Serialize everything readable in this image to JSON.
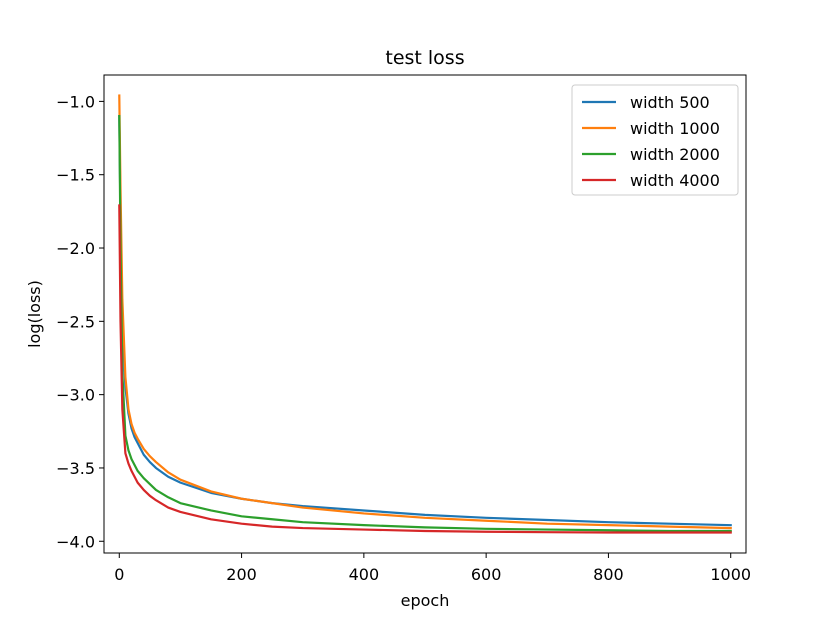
{
  "chart_data": {
    "type": "line",
    "title": "test loss",
    "xlabel": "epoch",
    "ylabel": "log(loss)",
    "xlim": [
      -25,
      1025
    ],
    "ylim": [
      -4.08,
      -0.82
    ],
    "xticks": [
      0,
      200,
      400,
      600,
      800,
      1000
    ],
    "yticks": [
      -1.0,
      -1.5,
      -2.0,
      -2.5,
      -3.0,
      -3.5,
      -4.0
    ],
    "xtick_labels": [
      "0",
      "200",
      "400",
      "600",
      "800",
      "1000"
    ],
    "ytick_labels": [
      "−1.0",
      "−1.5",
      "−2.0",
      "−2.5",
      "−3.0",
      "−3.5",
      "−4.0"
    ],
    "grid": false,
    "legend_position": "top-right",
    "series": [
      {
        "name": "width 500",
        "color": "#1f77b4",
        "x": [
          0,
          2,
          5,
          10,
          15,
          20,
          25,
          30,
          40,
          50,
          60,
          80,
          100,
          150,
          200,
          250,
          300,
          400,
          500,
          600,
          700,
          800,
          900,
          1000
        ],
        "y": [
          -1.1,
          -1.8,
          -2.5,
          -2.95,
          -3.13,
          -3.23,
          -3.29,
          -3.33,
          -3.41,
          -3.46,
          -3.5,
          -3.56,
          -3.6,
          -3.67,
          -3.71,
          -3.74,
          -3.76,
          -3.79,
          -3.82,
          -3.84,
          -3.855,
          -3.87,
          -3.88,
          -3.89
        ]
      },
      {
        "name": "width 1000",
        "color": "#ff7f0e",
        "x": [
          0,
          2,
          5,
          10,
          15,
          20,
          25,
          30,
          40,
          50,
          60,
          80,
          100,
          150,
          200,
          250,
          300,
          400,
          500,
          600,
          700,
          800,
          900,
          1000
        ],
        "y": [
          -0.96,
          -1.6,
          -2.35,
          -2.88,
          -3.1,
          -3.2,
          -3.26,
          -3.3,
          -3.37,
          -3.42,
          -3.46,
          -3.53,
          -3.58,
          -3.66,
          -3.71,
          -3.74,
          -3.77,
          -3.81,
          -3.84,
          -3.86,
          -3.88,
          -3.89,
          -3.9,
          -3.91
        ]
      },
      {
        "name": "width 2000",
        "color": "#2ca02c",
        "x": [
          0,
          2,
          5,
          10,
          15,
          20,
          25,
          30,
          40,
          50,
          60,
          80,
          100,
          150,
          200,
          250,
          300,
          400,
          500,
          600,
          700,
          800,
          900,
          1000
        ],
        "y": [
          -1.1,
          -2.0,
          -2.85,
          -3.28,
          -3.38,
          -3.44,
          -3.48,
          -3.52,
          -3.57,
          -3.61,
          -3.65,
          -3.7,
          -3.74,
          -3.79,
          -3.83,
          -3.85,
          -3.87,
          -3.89,
          -3.905,
          -3.915,
          -3.92,
          -3.925,
          -3.93,
          -3.93
        ]
      },
      {
        "name": "width 4000",
        "color": "#d62728",
        "x": [
          0,
          2,
          5,
          10,
          15,
          20,
          25,
          30,
          40,
          50,
          60,
          80,
          100,
          150,
          200,
          250,
          300,
          400,
          500,
          600,
          700,
          800,
          900,
          1000
        ],
        "y": [
          -1.71,
          -2.5,
          -3.1,
          -3.4,
          -3.47,
          -3.52,
          -3.56,
          -3.6,
          -3.65,
          -3.69,
          -3.72,
          -3.77,
          -3.8,
          -3.85,
          -3.88,
          -3.9,
          -3.91,
          -3.92,
          -3.93,
          -3.935,
          -3.938,
          -3.94,
          -3.94,
          -3.94
        ]
      }
    ]
  }
}
